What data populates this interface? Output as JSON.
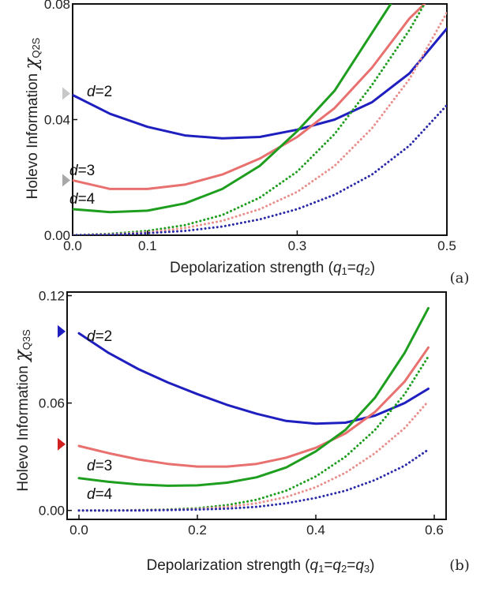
{
  "chart_data": [
    {
      "type": "line",
      "panel_label": "(a)",
      "xlabel": "Depolarization strength (q1=q2)",
      "xlabel_parts": [
        "Depolarization strength (",
        "q",
        "1",
        "=",
        "q",
        "2",
        ")"
      ],
      "ylabel": "Holevo Information χQ2S",
      "ylabel_parts": [
        "Holevo Information ",
        "χ",
        "Q2S"
      ],
      "xlim": [
        0.0,
        0.5
      ],
      "ylim": [
        0.0,
        0.08
      ],
      "xticks": [
        "0.0",
        "0.1",
        "0.3",
        "0.5"
      ],
      "xtick_values": [
        0.0,
        0.1,
        0.3,
        0.5
      ],
      "yticks": [
        "0.00",
        "0.04",
        "0.08"
      ],
      "ytick_values": [
        0.0,
        0.04,
        0.08
      ],
      "grid": false,
      "markers": [
        {
          "y": 0.049,
          "color": "#c8c8c8"
        },
        {
          "y": 0.019,
          "color": "#a8a8a8"
        }
      ],
      "series": [
        {
          "name": "d=2",
          "d_value": "2",
          "color": "#1f1fbf",
          "style": "solid",
          "x": [
            0.0,
            0.05,
            0.1,
            0.15,
            0.2,
            0.25,
            0.3,
            0.35,
            0.4,
            0.45,
            0.5
          ],
          "y": [
            0.0485,
            0.042,
            0.0375,
            0.0345,
            0.0335,
            0.034,
            0.0365,
            0.04,
            0.046,
            0.056,
            0.0715
          ]
        },
        {
          "name": "d=3",
          "d_value": "3",
          "color": "#e8706e",
          "style": "solid",
          "x": [
            0.0,
            0.05,
            0.1,
            0.15,
            0.2,
            0.25,
            0.3,
            0.35,
            0.4,
            0.45,
            0.47
          ],
          "y": [
            0.019,
            0.016,
            0.016,
            0.0175,
            0.021,
            0.0265,
            0.034,
            0.044,
            0.058,
            0.075,
            0.08
          ]
        },
        {
          "name": "d=4",
          "d_value": "4",
          "color": "#1e9e1e",
          "style": "solid",
          "x": [
            0.0,
            0.05,
            0.1,
            0.15,
            0.2,
            0.25,
            0.3,
            0.35,
            0.4,
            0.425
          ],
          "y": [
            0.009,
            0.008,
            0.0085,
            0.011,
            0.016,
            0.024,
            0.036,
            0.05,
            0.07,
            0.08
          ]
        },
        {
          "name": "",
          "color": "#1e9e1e",
          "style": "dotted",
          "x": [
            0.0,
            0.05,
            0.1,
            0.15,
            0.2,
            0.25,
            0.3,
            0.35,
            0.4,
            0.45,
            0.47
          ],
          "y": [
            0.0,
            0.0005,
            0.0015,
            0.0035,
            0.007,
            0.013,
            0.022,
            0.035,
            0.052,
            0.071,
            0.08
          ]
        },
        {
          "name": "",
          "color": "#e8908e",
          "style": "dotted",
          "x": [
            0.0,
            0.05,
            0.1,
            0.15,
            0.2,
            0.25,
            0.3,
            0.35,
            0.4,
            0.45,
            0.5
          ],
          "y": [
            0.0,
            0.0003,
            0.001,
            0.0025,
            0.005,
            0.009,
            0.015,
            0.024,
            0.037,
            0.054,
            0.077
          ]
        },
        {
          "name": "",
          "color": "#2a2aa8",
          "style": "dotted",
          "x": [
            0.0,
            0.05,
            0.1,
            0.15,
            0.2,
            0.25,
            0.3,
            0.35,
            0.4,
            0.45,
            0.5
          ],
          "y": [
            0.0,
            0.0002,
            0.0007,
            0.0015,
            0.003,
            0.0055,
            0.009,
            0.014,
            0.021,
            0.031,
            0.045
          ]
        }
      ]
    },
    {
      "type": "line",
      "panel_label": "(b)",
      "xlabel": "Depolarization strength (q1=q2=q3)",
      "xlabel_parts": [
        "Depolarization strength (",
        "q",
        "1",
        "=",
        "q",
        "2",
        "=",
        "q",
        "3",
        ")"
      ],
      "ylabel": "Holevo Information χQ3S",
      "ylabel_parts": [
        "Holevo Information ",
        "χ",
        "Q3S"
      ],
      "xlim": [
        -0.02,
        0.62
      ],
      "ylim": [
        -0.005,
        0.122
      ],
      "xticks": [
        "0.0",
        "0.2",
        "0.4",
        "0.6"
      ],
      "xtick_values": [
        0.0,
        0.2,
        0.4,
        0.6
      ],
      "yticks": [
        "0.00",
        "0.06",
        "0.12"
      ],
      "ytick_values": [
        0.0,
        0.06,
        0.12
      ],
      "grid": false,
      "markers": [
        {
          "y": 0.1,
          "color": "#1f1fbf"
        },
        {
          "y": 0.037,
          "color": "#d02020"
        }
      ],
      "series": [
        {
          "name": "d=2",
          "d_value": "2",
          "color": "#1f1fbf",
          "style": "solid",
          "x": [
            0.0,
            0.05,
            0.1,
            0.15,
            0.2,
            0.25,
            0.3,
            0.35,
            0.4,
            0.45,
            0.5,
            0.55,
            0.59
          ],
          "y": [
            0.099,
            0.088,
            0.079,
            0.0715,
            0.065,
            0.059,
            0.054,
            0.05,
            0.0485,
            0.049,
            0.053,
            0.06,
            0.068
          ]
        },
        {
          "name": "d=3",
          "d_value": "3",
          "color": "#e8706e",
          "style": "solid",
          "x": [
            0.0,
            0.05,
            0.1,
            0.15,
            0.2,
            0.25,
            0.3,
            0.35,
            0.4,
            0.45,
            0.5,
            0.55,
            0.59
          ],
          "y": [
            0.036,
            0.032,
            0.0285,
            0.026,
            0.0245,
            0.0245,
            0.026,
            0.0295,
            0.035,
            0.043,
            0.055,
            0.072,
            0.091
          ]
        },
        {
          "name": "d=4",
          "d_value": "4",
          "color": "#1e9e1e",
          "style": "solid",
          "x": [
            0.0,
            0.05,
            0.1,
            0.15,
            0.2,
            0.25,
            0.3,
            0.35,
            0.4,
            0.45,
            0.5,
            0.55,
            0.59
          ],
          "y": [
            0.018,
            0.016,
            0.0145,
            0.0138,
            0.014,
            0.0155,
            0.0185,
            0.024,
            0.033,
            0.045,
            0.063,
            0.088,
            0.113
          ]
        },
        {
          "name": "",
          "color": "#1e9e1e",
          "style": "dotted",
          "x": [
            0.0,
            0.05,
            0.1,
            0.15,
            0.2,
            0.25,
            0.3,
            0.35,
            0.4,
            0.45,
            0.5,
            0.55,
            0.59
          ],
          "y": [
            0.0,
            0.0,
            0.0002,
            0.0005,
            0.0012,
            0.003,
            0.006,
            0.011,
            0.019,
            0.03,
            0.045,
            0.065,
            0.086
          ]
        },
        {
          "name": "",
          "color": "#e8908e",
          "style": "dotted",
          "x": [
            0.0,
            0.05,
            0.1,
            0.15,
            0.2,
            0.25,
            0.3,
            0.35,
            0.4,
            0.45,
            0.5,
            0.55,
            0.59
          ],
          "y": [
            0.0,
            0.0,
            0.0001,
            0.0003,
            0.0008,
            0.002,
            0.004,
            0.0075,
            0.013,
            0.021,
            0.032,
            0.046,
            0.061
          ]
        },
        {
          "name": "",
          "color": "#2a2aa8",
          "style": "dotted",
          "x": [
            0.0,
            0.05,
            0.1,
            0.15,
            0.2,
            0.25,
            0.3,
            0.35,
            0.4,
            0.45,
            0.5,
            0.55,
            0.59
          ],
          "y": [
            0.0,
            0.0,
            0.0,
            0.0002,
            0.0005,
            0.001,
            0.002,
            0.004,
            0.007,
            0.011,
            0.017,
            0.025,
            0.034
          ]
        }
      ]
    }
  ]
}
